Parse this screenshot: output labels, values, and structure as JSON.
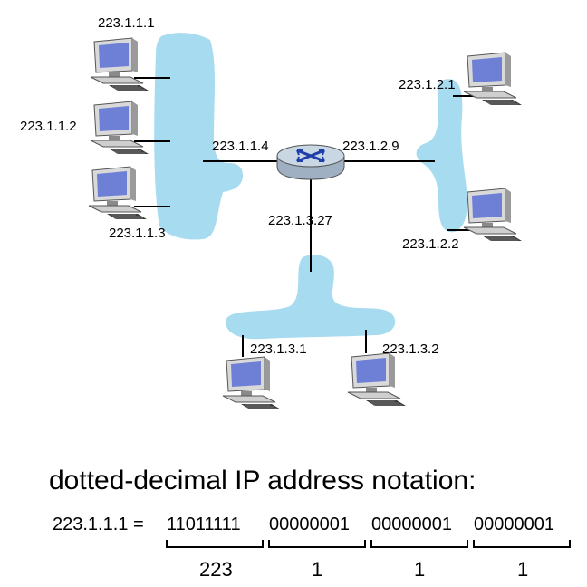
{
  "colors": {
    "lan": "#a7dcf0",
    "router_body": "#c9d6e3",
    "router_arrows": "#1f3fa8",
    "screen": "#6e7fd6",
    "monitor": "#d9d9d9"
  },
  "subnet_1": {
    "hosts": [
      "223.1.1.1",
      "223.1.1.2",
      "223.1.1.3"
    ],
    "router_interface": "223.1.1.4"
  },
  "subnet_2": {
    "hosts": [
      "223.1.2.1",
      "223.1.2.2"
    ],
    "router_interface": "223.1.2.9"
  },
  "subnet_3": {
    "hosts": [
      "223.1.3.1",
      "223.1.3.2"
    ],
    "router_interface": "223.1.3.27"
  },
  "notation": {
    "caption": "dotted-decimal IP address notation:",
    "equation_prefix": "223.1.1.1 =",
    "octets": [
      {
        "binary": "11011111",
        "decimal": "223"
      },
      {
        "binary": "00000001",
        "decimal": "1"
      },
      {
        "binary": "00000001",
        "decimal": "1"
      },
      {
        "binary": "00000001",
        "decimal": "1"
      }
    ]
  },
  "icons": {
    "host": "desktop-computer-icon",
    "router": "router-icon"
  }
}
